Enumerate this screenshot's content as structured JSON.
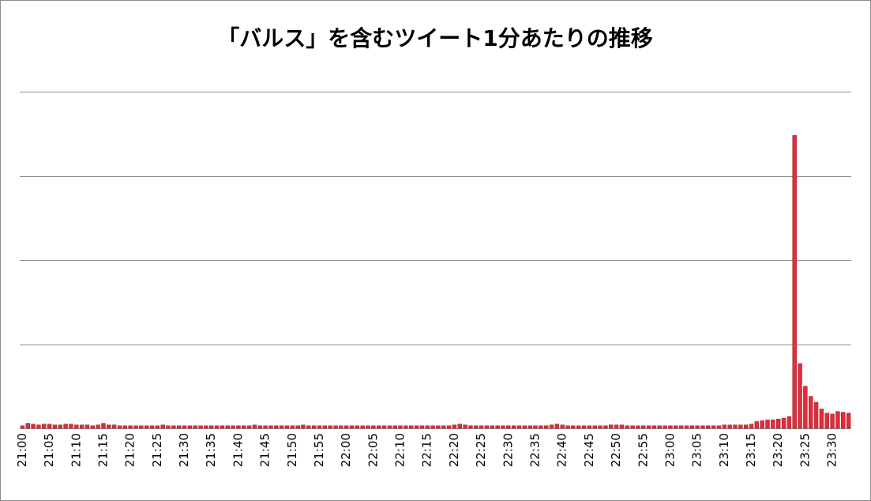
{
  "chart_data": {
    "type": "bar",
    "title": "「バルス」を含むツイート1分あたりの推移",
    "categories": [
      "21:00",
      null,
      null,
      null,
      null,
      "21:05",
      null,
      null,
      null,
      null,
      "21:10",
      null,
      null,
      null,
      null,
      "21:15",
      null,
      null,
      null,
      null,
      "21:20",
      null,
      null,
      null,
      null,
      "21:25",
      null,
      null,
      null,
      null,
      "21:30",
      null,
      null,
      null,
      null,
      "21:35",
      null,
      null,
      null,
      null,
      "21:40",
      null,
      null,
      null,
      null,
      "21:45",
      null,
      null,
      null,
      null,
      "21:50",
      null,
      null,
      null,
      null,
      "21:55",
      null,
      null,
      null,
      null,
      "22:00",
      null,
      null,
      null,
      null,
      "22:05",
      null,
      null,
      null,
      null,
      "22:10",
      null,
      null,
      null,
      null,
      "22:15",
      null,
      null,
      null,
      null,
      "22:20",
      null,
      null,
      null,
      null,
      "22:25",
      null,
      null,
      null,
      null,
      "22:30",
      null,
      null,
      null,
      null,
      "22:35",
      null,
      null,
      null,
      null,
      "22:40",
      null,
      null,
      null,
      null,
      "22:45",
      null,
      null,
      null,
      null,
      "22:50",
      null,
      null,
      null,
      null,
      "22:55",
      null,
      null,
      null,
      null,
      "23:00",
      null,
      null,
      null,
      null,
      "23:05",
      null,
      null,
      null,
      null,
      "23:10",
      null,
      null,
      null,
      null,
      "23:15",
      null,
      null,
      null,
      null,
      "23:20",
      null,
      null,
      null,
      null,
      "23:25",
      null,
      null,
      null,
      null,
      "23:30",
      null,
      null,
      null
    ],
    "values": [
      3,
      6,
      5,
      4,
      5,
      5,
      4,
      4,
      5,
      5,
      4,
      4,
      4,
      3,
      4,
      6,
      4,
      4,
      3,
      3,
      3,
      3,
      3,
      3,
      3,
      3,
      4,
      3,
      3,
      3,
      3,
      3,
      3,
      3,
      3,
      3,
      3,
      3,
      3,
      3,
      3,
      3,
      3,
      4,
      3,
      3,
      3,
      3,
      3,
      3,
      3,
      3,
      4,
      3,
      3,
      3,
      3,
      3,
      3,
      3,
      3,
      3,
      3,
      3,
      3,
      3,
      3,
      3,
      3,
      3,
      3,
      3,
      3,
      3,
      3,
      3,
      3,
      3,
      3,
      3,
      4,
      5,
      4,
      3,
      3,
      3,
      3,
      3,
      3,
      3,
      3,
      3,
      3,
      3,
      3,
      3,
      3,
      3,
      4,
      5,
      4,
      3,
      3,
      3,
      3,
      3,
      3,
      3,
      3,
      4,
      4,
      4,
      3,
      3,
      3,
      3,
      3,
      3,
      3,
      3,
      3,
      3,
      3,
      3,
      3,
      3,
      3,
      3,
      3,
      3,
      4,
      4,
      4,
      4,
      4,
      5,
      8,
      9,
      10,
      10,
      11,
      12,
      14,
      348,
      77,
      50,
      38,
      31,
      23,
      18,
      17,
      20,
      19,
      18
    ],
    "color": "#e02d3c",
    "ylim": [
      0,
      400
    ],
    "yticks": [
      0,
      100,
      200,
      300,
      400
    ],
    "grid": true
  }
}
